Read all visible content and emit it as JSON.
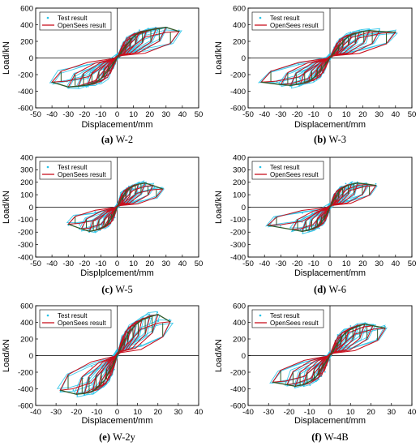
{
  "figure": {
    "panels": [
      {
        "caption_letter": "(a)",
        "caption_name": "W-2",
        "xlabel": "Displacement/mm",
        "ylabel": "Load/kN"
      },
      {
        "caption_letter": "(b)",
        "caption_name": "W-3",
        "xlabel": "Displacement/mm",
        "ylabel": "Load/kN"
      },
      {
        "caption_letter": "(c)",
        "caption_name": "W-5",
        "xlabel": "Displplcement/mm",
        "ylabel": "Load/kN"
      },
      {
        "caption_letter": "(d)",
        "caption_name": "W-6",
        "xlabel": "Displacement/mm",
        "ylabel": "Load/kN"
      },
      {
        "caption_letter": "(e)",
        "caption_name": "W-2y",
        "xlabel": "Displacement/mm",
        "ylabel": "Load/kN"
      },
      {
        "caption_letter": "(f)",
        "caption_name": "W-4B",
        "xlabel": "Displacement/mm",
        "ylabel": "Load/kN"
      }
    ]
  },
  "colors": {
    "test": "#27c3e8",
    "opensees": "#c8101e",
    "envelope": "#2f5a2a"
  },
  "chart_data": [
    {
      "type": "line",
      "panel": "W-2",
      "xlim": [
        -50,
        50
      ],
      "ylim": [
        -600,
        600
      ],
      "xticks": [
        -50,
        -40,
        -30,
        -20,
        -10,
        0,
        10,
        20,
        30,
        40,
        50
      ],
      "yticks": [
        -600,
        -400,
        -200,
        0,
        200,
        400,
        600
      ],
      "legend": [
        "Test result",
        "OpenSees result"
      ],
      "legend_position": "top-left",
      "cycles": [
        [
          3,
          90,
          -3,
          -85
        ],
        [
          6,
          170,
          -6,
          -165
        ],
        [
          9,
          245,
          -9,
          -240
        ],
        [
          13,
          310,
          -13,
          -305
        ],
        [
          18,
          340,
          -18,
          -335
        ],
        [
          24,
          360,
          -24,
          -350
        ],
        [
          30,
          380,
          -30,
          -360
        ],
        [
          38,
          330,
          -40,
          -300
        ]
      ]
    },
    {
      "type": "line",
      "panel": "W-3",
      "xlim": [
        -50,
        50
      ],
      "ylim": [
        -600,
        600
      ],
      "xticks": [
        -50,
        -40,
        -30,
        -20,
        -10,
        0,
        10,
        20,
        30,
        40,
        50
      ],
      "yticks": [
        -600,
        -400,
        -200,
        0,
        200,
        400,
        600
      ],
      "legend": [
        "Test result",
        "OpenSees result"
      ],
      "legend_position": "top-left",
      "cycles": [
        [
          3,
          80,
          -3,
          -80
        ],
        [
          6,
          160,
          -6,
          -160
        ],
        [
          9,
          230,
          -9,
          -230
        ],
        [
          13,
          290,
          -13,
          -290
        ],
        [
          18,
          320,
          -18,
          -320
        ],
        [
          24,
          340,
          -24,
          -340
        ],
        [
          30,
          330,
          -30,
          -330
        ],
        [
          40,
          320,
          -42,
          -300
        ]
      ]
    },
    {
      "type": "line",
      "panel": "W-5",
      "xlim": [
        -50,
        50
      ],
      "ylim": [
        -400,
        400
      ],
      "xticks": [
        -50,
        -40,
        -30,
        -20,
        -10,
        0,
        10,
        20,
        30,
        40,
        50
      ],
      "yticks": [
        -400,
        -300,
        -200,
        -100,
        0,
        100,
        200,
        300,
        400
      ],
      "legend": [
        "Test result",
        "OpenSees result"
      ],
      "legend_position": "top-left",
      "cycles": [
        [
          2,
          55,
          -2,
          -55
        ],
        [
          4,
          100,
          -4,
          -100
        ],
        [
          6,
          140,
          -6,
          -140
        ],
        [
          9,
          170,
          -9,
          -170
        ],
        [
          13,
          190,
          -13,
          -190
        ],
        [
          17,
          200,
          -17,
          -200
        ],
        [
          22,
          180,
          -22,
          -180
        ],
        [
          28,
          150,
          -30,
          -140
        ]
      ]
    },
    {
      "type": "line",
      "panel": "W-6",
      "xlim": [
        -50,
        50
      ],
      "ylim": [
        -400,
        400
      ],
      "xticks": [
        -50,
        -40,
        -30,
        -20,
        -10,
        0,
        10,
        20,
        30,
        40,
        50
      ],
      "yticks": [
        -400,
        -300,
        -200,
        -100,
        0,
        100,
        200,
        300,
        400
      ],
      "legend": [
        "Test result",
        "OpenSees result"
      ],
      "legend_position": "top-left",
      "cycles": [
        [
          2,
          55,
          -2,
          -55
        ],
        [
          4,
          100,
          -4,
          -100
        ],
        [
          6,
          140,
          -6,
          -140
        ],
        [
          9,
          170,
          -9,
          -170
        ],
        [
          13,
          190,
          -13,
          -190
        ],
        [
          17,
          200,
          -17,
          -200
        ],
        [
          23,
          190,
          -23,
          -185
        ],
        [
          28,
          180,
          -38,
          -150
        ]
      ]
    },
    {
      "type": "line",
      "panel": "W-2y",
      "xlim": [
        -40,
        40
      ],
      "ylim": [
        -600,
        600
      ],
      "xticks": [
        -40,
        -30,
        -20,
        -10,
        0,
        10,
        20,
        30,
        40
      ],
      "yticks": [
        -600,
        -400,
        -200,
        0,
        200,
        400,
        600
      ],
      "legend": [
        "Test result",
        "OpenSees result"
      ],
      "legend_position": "top-left",
      "cycles": [
        [
          2,
          110,
          -2,
          -110
        ],
        [
          4,
          210,
          -4,
          -210
        ],
        [
          6,
          300,
          -6,
          -300
        ],
        [
          9,
          380,
          -9,
          -380
        ],
        [
          12,
          440,
          -12,
          -440
        ],
        [
          16,
          480,
          -16,
          -470
        ],
        [
          20,
          510,
          -20,
          -480
        ],
        [
          26,
          420,
          -28,
          -430
        ]
      ]
    },
    {
      "type": "line",
      "panel": "W-4B",
      "xlim": [
        -40,
        40
      ],
      "ylim": [
        -600,
        600
      ],
      "xticks": [
        -40,
        -30,
        -20,
        -10,
        0,
        10,
        20,
        30,
        40
      ],
      "yticks": [
        -600,
        -400,
        -200,
        0,
        200,
        400,
        600
      ],
      "legend": [
        "Test result",
        "OpenSees result"
      ],
      "legend_position": "top-left",
      "cycles": [
        [
          2,
          80,
          -2,
          -80
        ],
        [
          4,
          160,
          -4,
          -160
        ],
        [
          6,
          240,
          -6,
          -240
        ],
        [
          9,
          310,
          -9,
          -310
        ],
        [
          13,
          360,
          -13,
          -360
        ],
        [
          17,
          390,
          -17,
          -380
        ],
        [
          21,
          370,
          -21,
          -360
        ],
        [
          27,
          340,
          -28,
          -330
        ]
      ]
    }
  ]
}
